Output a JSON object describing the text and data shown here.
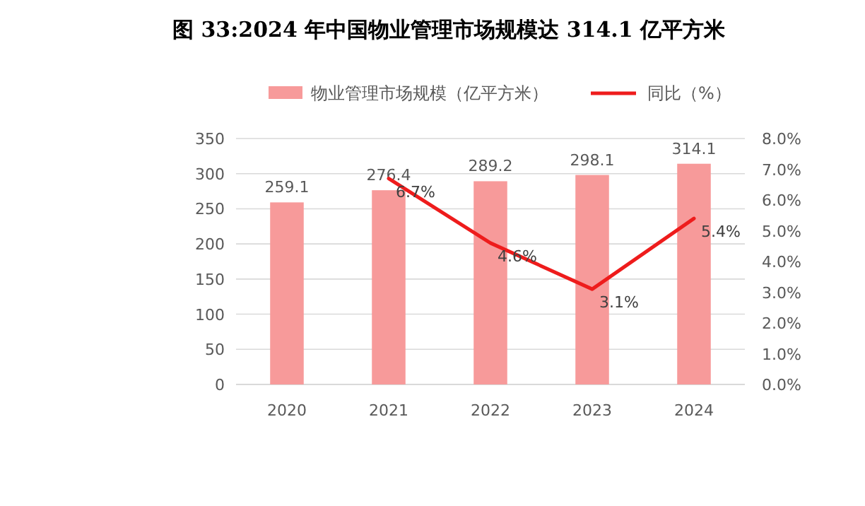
{
  "chart_data": {
    "type": "bar",
    "title": "图 33:2024 年中国物业管理市场规模达 314.1 亿平方米",
    "categories": [
      "2020",
      "2021",
      "2022",
      "2023",
      "2024"
    ],
    "series": [
      {
        "name": "物业管理市场规模（亿平方米）",
        "color": "#f79a9a",
        "values": [
          259.1,
          276.4,
          289.2,
          298.1,
          314.1
        ],
        "value_labels": [
          "259.1",
          "276.4",
          "289.2",
          "298.1",
          "314.1"
        ]
      },
      {
        "name": "同比（%）",
        "type": "line",
        "axis": "y2",
        "color": "#ee1c1c",
        "values": [
          null,
          6.7,
          4.6,
          3.1,
          5.4
        ],
        "value_labels": [
          null,
          "6.7%",
          "4.6%",
          "3.1%",
          "5.4%"
        ]
      }
    ],
    "ylim": [
      0,
      350
    ],
    "yticks": [
      0,
      50,
      100,
      150,
      200,
      250,
      300,
      350
    ],
    "y2lim": [
      0,
      8
    ],
    "y2ticks": [
      {
        "value": 0,
        "label": "0.0%"
      },
      {
        "value": 1,
        "label": "1.0%"
      },
      {
        "value": 2,
        "label": "2.0%"
      },
      {
        "value": 3,
        "label": "3.0%"
      },
      {
        "value": 4,
        "label": "4.0%"
      },
      {
        "value": 5,
        "label": "5.0%"
      },
      {
        "value": 6,
        "label": "6.0%"
      },
      {
        "value": 7,
        "label": "7.0%"
      },
      {
        "value": 8,
        "label": "8.0%"
      }
    ],
    "grid": "y",
    "legend": "top"
  }
}
